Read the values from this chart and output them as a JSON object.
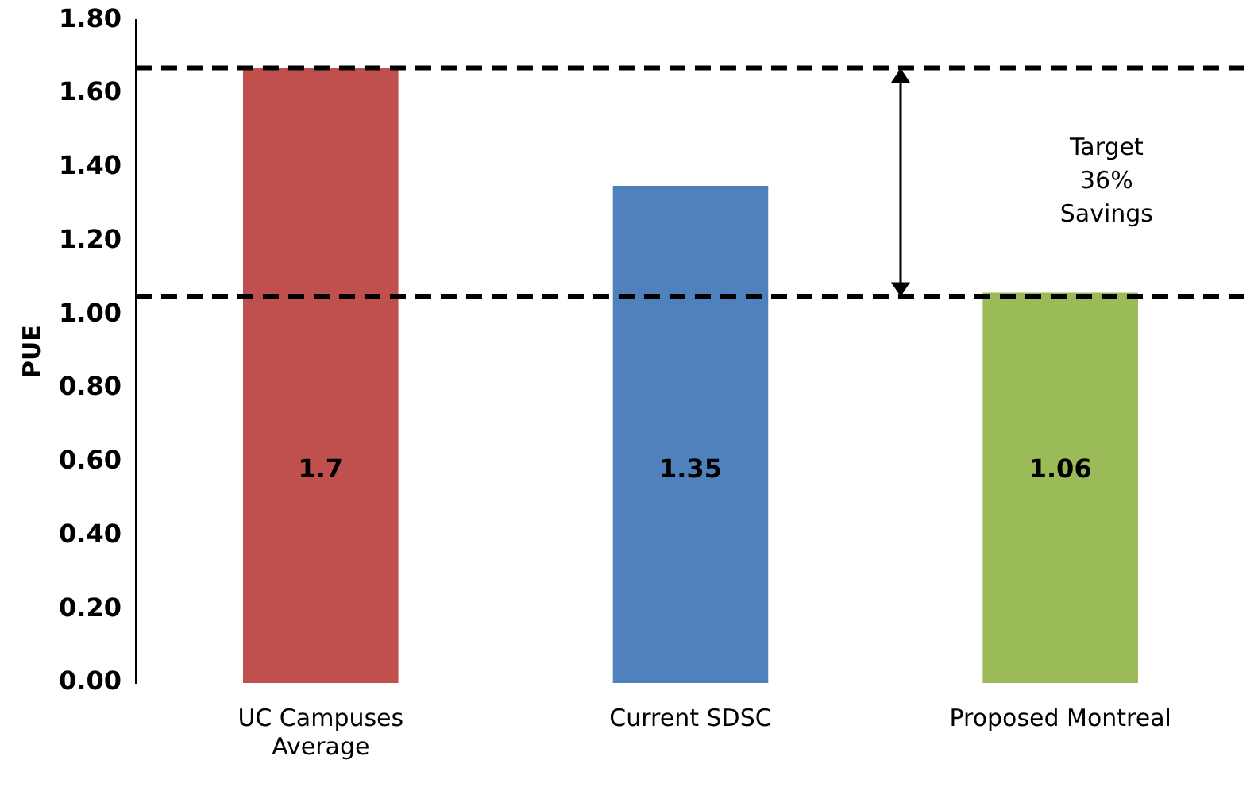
{
  "chart_data": {
    "type": "bar",
    "ylabel": "PUE",
    "categories": [
      "UC Campuses Average",
      "Current SDSC",
      "Proposed Montreal"
    ],
    "values": [
      1.67,
      1.35,
      1.06
    ],
    "colors": [
      "#c0504d",
      "#4f81bd",
      "#9bbb59"
    ],
    "value_labels": [
      "1.7",
      "1.35",
      "1.06"
    ],
    "ylim": [
      0,
      1.8
    ],
    "yticks": [
      {
        "value": 0,
        "label": "0.00"
      },
      {
        "value": 0.2,
        "label": "0.20"
      },
      {
        "value": 0.4,
        "label": "0.40"
      },
      {
        "value": 0.6,
        "label": "0.60"
      },
      {
        "value": 0.8,
        "label": "0.80"
      },
      {
        "value": 1,
        "label": "1.00"
      },
      {
        "value": 1.2,
        "label": "1.20"
      },
      {
        "value": 1.4,
        "label": "1.40"
      },
      {
        "value": 1.6,
        "label": "1.60"
      },
      {
        "value": 1.8,
        "label": "1.80"
      }
    ],
    "ref_lines": [
      {
        "axis": "y",
        "value": 1.67,
        "color": "#000000",
        "line_style": "dashed"
      },
      {
        "axis": "y",
        "value": 1.05,
        "color": "#000000",
        "line_style": "dashed"
      }
    ],
    "annotations": [
      "Target 36% Savings"
    ],
    "grid": false,
    "legend": false
  }
}
